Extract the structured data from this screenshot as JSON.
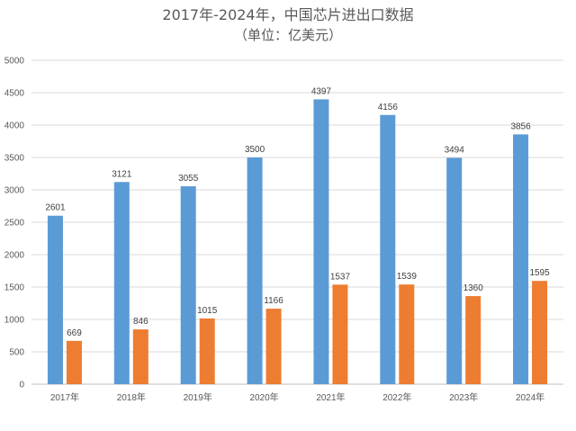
{
  "chart_data": {
    "type": "bar",
    "title": "2017年-2024年，中国芯片进出口数据",
    "subtitle": "（单位：亿美元）",
    "categories": [
      "2017年",
      "2018年",
      "2019年",
      "2020年",
      "2021年",
      "2022年",
      "2023年",
      "2024年"
    ],
    "series": [
      {
        "values": [
          2601,
          3121,
          3055,
          3500,
          4397,
          4156,
          3494,
          3856
        ],
        "color": "#5b9bd5"
      },
      {
        "values": [
          669,
          846,
          1015,
          1166,
          1537,
          1539,
          1360,
          1595
        ],
        "color": "#ed7d31"
      }
    ],
    "ylim": [
      0,
      5000
    ],
    "yticks": [
      0,
      500,
      1000,
      1500,
      2000,
      2500,
      3000,
      3500,
      4000,
      4500,
      5000
    ],
    "grid": true,
    "gridColor": "#d9d9d9"
  }
}
